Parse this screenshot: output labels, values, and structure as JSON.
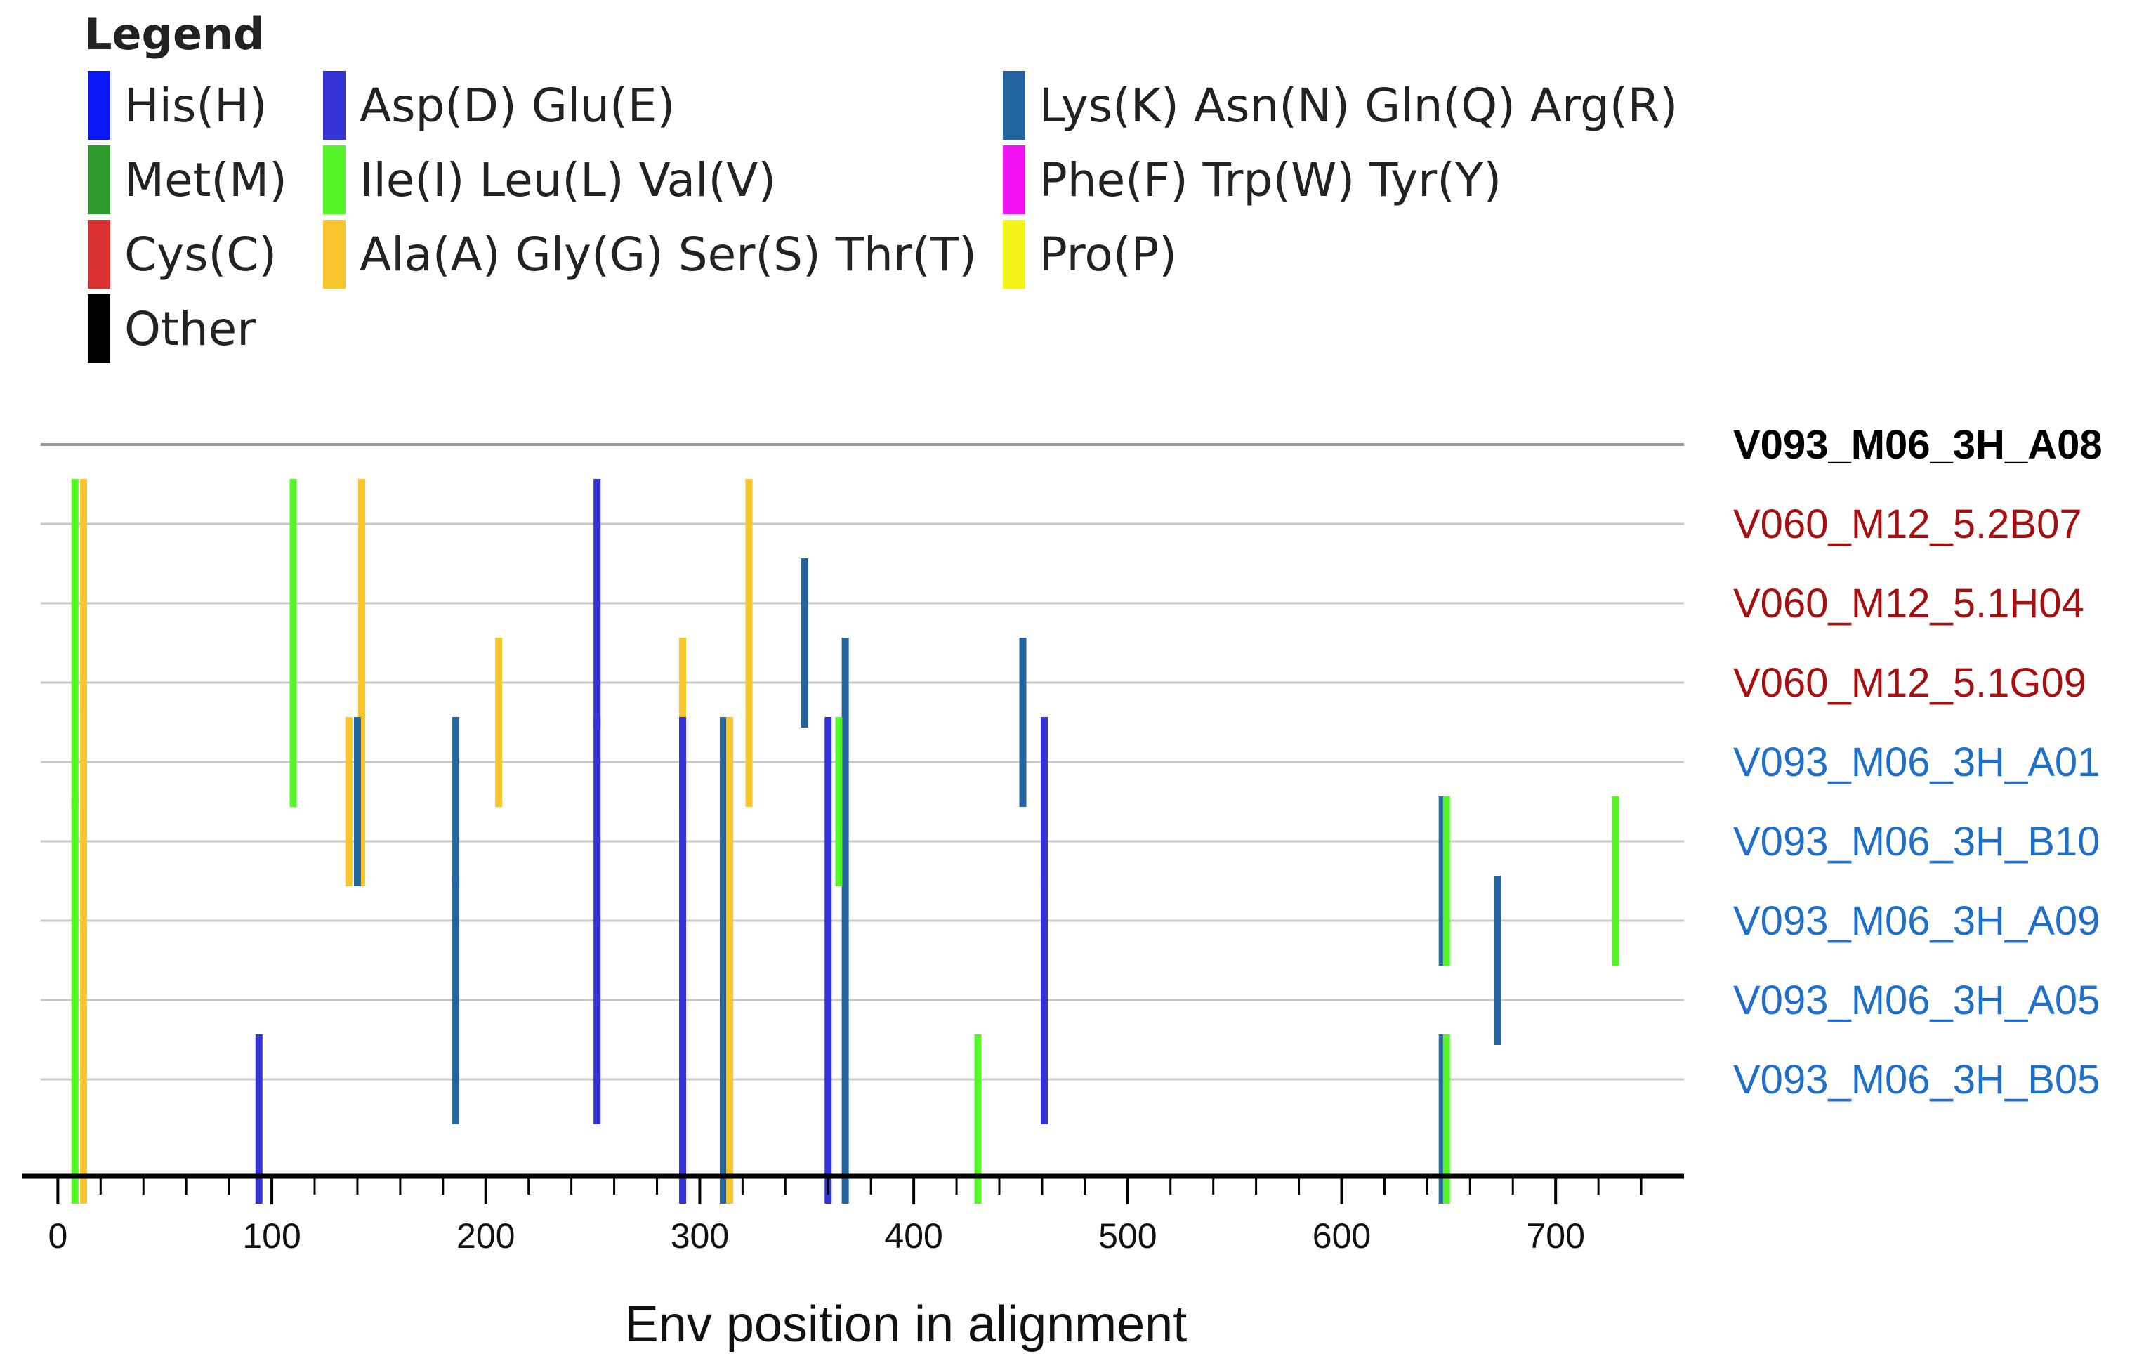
{
  "legend": {
    "title": "Legend",
    "items": [
      {
        "label": "His(H)",
        "color": "#0a18f5"
      },
      {
        "label": "Met(M)",
        "color": "#2e9a2e"
      },
      {
        "label": "Cys(C)",
        "color": "#d93030"
      },
      {
        "label": "Other",
        "color": "#000000"
      },
      {
        "label": "Asp(D) Glu(E)",
        "color": "#3333d6"
      },
      {
        "label": "Ile(I) Leu(L) Val(V)",
        "color": "#55f52a"
      },
      {
        "label": "Ala(A) Gly(G) Ser(S) Thr(T)",
        "color": "#f7c52e"
      },
      {
        "label": "Lys(K) Asn(N) Gln(Q) Arg(R)",
        "color": "#24649e"
      },
      {
        "label": "Phe(F) Trp(W) Tyr(Y)",
        "color": "#f211f0"
      },
      {
        "label": "Pro(P)",
        "color": "#f3f21a"
      }
    ]
  },
  "chart_data": {
    "type": "mutation-highlighter",
    "xlabel": "Env position in alignment",
    "xlim": [
      -8,
      760
    ],
    "xticks_major": [
      0,
      100,
      200,
      300,
      400,
      500,
      600,
      700
    ],
    "xticks_minor_step": 20,
    "reference": {
      "name": "V093_M06_3H_A08",
      "color": "#000000",
      "bold": true
    },
    "sequences": [
      {
        "name": "V060_M12_5.2B07",
        "color": "#a50f0f",
        "bold": false
      },
      {
        "name": "V060_M12_5.1H04",
        "color": "#a50f0f",
        "bold": false
      },
      {
        "name": "V060_M12_5.1G09",
        "color": "#a50f0f",
        "bold": false
      },
      {
        "name": "V093_M06_3H_A01",
        "color": "#1f6ec9",
        "bold": false
      },
      {
        "name": "V093_M06_3H_B10",
        "color": "#1f6ec9",
        "bold": false
      },
      {
        "name": "V093_M06_3H_A09",
        "color": "#1f6ec9",
        "bold": false
      },
      {
        "name": "V093_M06_3H_A05",
        "color": "#1f6ec9",
        "bold": false
      },
      {
        "name": "V093_M06_3H_B05",
        "color": "#1f6ec9",
        "bold": false
      }
    ],
    "mutations": [
      {
        "pos": 8,
        "from": 0,
        "to": 3,
        "cls": "ILV"
      },
      {
        "pos": 12,
        "from": 0,
        "to": 3,
        "cls": "AGST"
      },
      {
        "pos": 110,
        "from": 0,
        "to": 3,
        "cls": "ILV"
      },
      {
        "pos": 142,
        "from": 0,
        "to": 4,
        "cls": "AGST"
      },
      {
        "pos": 252,
        "from": 0,
        "to": 2,
        "cls": "DE"
      },
      {
        "pos": 323,
        "from": 0,
        "to": 1,
        "cls": "AGST"
      },
      {
        "pos": 349,
        "from": 1,
        "to": 2,
        "cls": "KNQR"
      },
      {
        "pos": 206,
        "from": 2,
        "to": 3,
        "cls": "AGST"
      },
      {
        "pos": 292,
        "from": 2,
        "to": 3,
        "cls": "AGST"
      },
      {
        "pos": 323,
        "from": 2,
        "to": 3,
        "cls": "AGST"
      },
      {
        "pos": 368,
        "from": 2,
        "to": 8,
        "cls": "KNQR"
      },
      {
        "pos": 451,
        "from": 2,
        "to": 3,
        "cls": "KNQR"
      },
      {
        "pos": 12,
        "from": 3,
        "to": 8,
        "cls": "AGST"
      },
      {
        "pos": 136,
        "from": 3,
        "to": 4,
        "cls": "AGST"
      },
      {
        "pos": 140,
        "from": 3,
        "to": 4,
        "cls": "KNQR"
      },
      {
        "pos": 186,
        "from": 3,
        "to": 4,
        "cls": "KNQR"
      },
      {
        "pos": 252,
        "from": 3,
        "to": 7,
        "cls": "DE"
      },
      {
        "pos": 292,
        "from": 3,
        "to": 8,
        "cls": "DE"
      },
      {
        "pos": 311,
        "from": 3,
        "to": 8,
        "cls": "KNQR"
      },
      {
        "pos": 314,
        "from": 3,
        "to": 8,
        "cls": "AGST"
      },
      {
        "pos": 360,
        "from": 3,
        "to": 8,
        "cls": "DE"
      },
      {
        "pos": 365,
        "from": 3,
        "to": 4,
        "cls": "ILV"
      },
      {
        "pos": 461,
        "from": 3,
        "to": 4,
        "cls": "DE"
      },
      {
        "pos": 8,
        "from": 4,
        "to": 8,
        "cls": "ILV"
      },
      {
        "pos": 647,
        "from": 4,
        "to": 5,
        "cls": "KNQR"
      },
      {
        "pos": 649,
        "from": 4,
        "to": 5,
        "cls": "ILV"
      },
      {
        "pos": 728,
        "from": 4,
        "to": 5,
        "cls": "ILV"
      },
      {
        "pos": 186,
        "from": 5,
        "to": 7,
        "cls": "KNQR"
      },
      {
        "pos": 461,
        "from": 5,
        "to": 7,
        "cls": "DE"
      },
      {
        "pos": 673,
        "from": 5,
        "to": 6,
        "cls": "KNQR"
      },
      {
        "pos": 94,
        "from": 7,
        "to": 8,
        "cls": "DE"
      },
      {
        "pos": 430,
        "from": 7,
        "to": 8,
        "cls": "ILV"
      },
      {
        "pos": 647,
        "from": 7,
        "to": 8,
        "cls": "KNQR"
      },
      {
        "pos": 649,
        "from": 7,
        "to": 8,
        "cls": "ILV"
      }
    ]
  }
}
